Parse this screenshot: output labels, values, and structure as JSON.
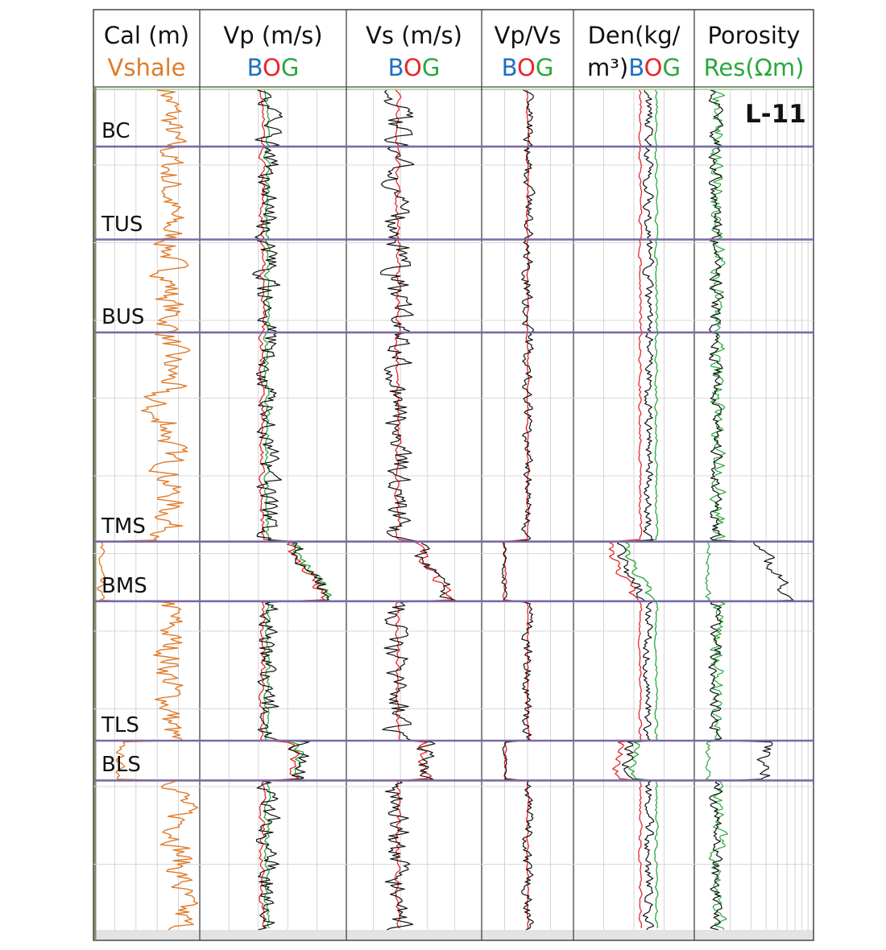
{
  "chart_data": {
    "type": "line",
    "well_name": "L-11",
    "tracks": [
      {
        "id": "cal",
        "line1": "Cal (m)",
        "line2": [
          {
            "t": "Vshale",
            "c": "#e07b2a"
          }
        ]
      },
      {
        "id": "vp",
        "line1": "Vp (m/s)",
        "line2": [
          {
            "t": "B",
            "c": "#1f6fc0"
          },
          {
            "t": "O",
            "c": "#e8262a"
          },
          {
            "t": "G",
            "c": "#2aa83c"
          }
        ]
      },
      {
        "id": "vs",
        "line1": "Vs (m/s)",
        "line2": [
          {
            "t": "B",
            "c": "#1f6fc0"
          },
          {
            "t": "O",
            "c": "#e8262a"
          },
          {
            "t": "G",
            "c": "#2aa83c"
          }
        ]
      },
      {
        "id": "vpvs",
        "line1": "Vp/Vs",
        "line2": [
          {
            "t": "B",
            "c": "#1f6fc0"
          },
          {
            "t": "O",
            "c": "#e8262a"
          },
          {
            "t": "G",
            "c": "#2aa83c"
          }
        ]
      },
      {
        "id": "den",
        "line1": "Den(kg/",
        "line2": [
          {
            "t": "m³)",
            "c": "#111111"
          },
          {
            "t": "B",
            "c": "#1f6fc0"
          },
          {
            "t": "O",
            "c": "#e8262a"
          },
          {
            "t": "G",
            "c": "#2aa83c"
          }
        ]
      },
      {
        "id": "por",
        "line1": "Porosity",
        "line2": [
          {
            "t": "Res(Ωm)",
            "c": "#2aa83c"
          }
        ]
      }
    ],
    "formations": [
      {
        "name": "BC",
        "top": 0.0,
        "base": 0.085
      },
      {
        "name": "TUS",
        "top": 0.085,
        "base": 0.225
      },
      {
        "name": "BUS",
        "top": 0.225,
        "base": 0.365
      },
      {
        "name": "TMS",
        "top": 0.365,
        "base": 0.68
      },
      {
        "name": "BMS",
        "top": 0.68,
        "base": 0.77
      },
      {
        "name": "TLS",
        "top": 0.77,
        "base": 0.98
      },
      {
        "name": "BLS",
        "top": 0.98,
        "base": 1.04
      }
    ],
    "colors": {
      "vshale": "#e07b2a",
      "log": "#111111",
      "fluid_b": "#1f6fc0",
      "fluid_o": "#e8262a",
      "fluid_g": "#2aa83c",
      "boundary": "#7a6aa6"
    }
  }
}
